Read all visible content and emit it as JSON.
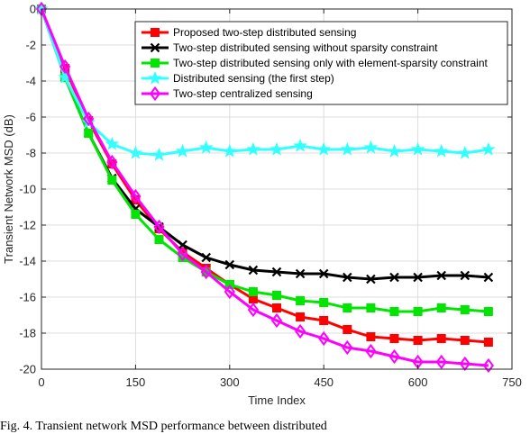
{
  "chart_data": {
    "type": "line",
    "title": "",
    "xlabel": "Time Index",
    "ylabel": "Transient Network MSD (dB)",
    "xlim": [
      0,
      750
    ],
    "ylim": [
      -20,
      0
    ],
    "xticks": [
      0,
      150,
      300,
      450,
      600,
      750
    ],
    "yticks": [
      0,
      -2,
      -4,
      -6,
      -8,
      -10,
      -12,
      -14,
      -16,
      -18,
      -20
    ],
    "grid": true,
    "legend_position": "top-right",
    "series": [
      {
        "name": "Proposed two-step distributed sensing",
        "color": "#ff0000",
        "marker": "square",
        "x": [
          0,
          37.5,
          75,
          112.5,
          150,
          187.5,
          225,
          262.5,
          300,
          337.5,
          375,
          412.5,
          450,
          487.5,
          525,
          562.5,
          600,
          637.5,
          675,
          712.5
        ],
        "y": [
          0,
          -3.3,
          -6.2,
          -8.6,
          -10.6,
          -12.2,
          -13.5,
          -14.4,
          -15.3,
          -16.1,
          -16.6,
          -17.1,
          -17.3,
          -17.8,
          -18.2,
          -18.3,
          -18.4,
          -18.3,
          -18.4,
          -18.5
        ]
      },
      {
        "name": "Two-step distributed sensing without sparsity constraint",
        "color": "#000000",
        "marker": "x",
        "x": [
          0,
          37.5,
          75,
          112.5,
          150,
          187.5,
          225,
          262.5,
          300,
          337.5,
          375,
          412.5,
          450,
          487.5,
          525,
          562.5,
          600,
          637.5,
          675,
          712.5
        ],
        "y": [
          0,
          -3.8,
          -6.9,
          -9.4,
          -11.1,
          -12.1,
          -13.1,
          -13.8,
          -14.2,
          -14.5,
          -14.6,
          -14.7,
          -14.7,
          -14.9,
          -15.0,
          -14.9,
          -14.9,
          -14.8,
          -14.8,
          -14.9
        ]
      },
      {
        "name": "Two-step distributed sensing only with element-sparsity constraint",
        "color": "#00e600",
        "marker": "square",
        "x": [
          0,
          37.5,
          75,
          112.5,
          150,
          187.5,
          225,
          262.5,
          300,
          337.5,
          375,
          412.5,
          450,
          487.5,
          525,
          562.5,
          600,
          637.5,
          675,
          712.5
        ],
        "y": [
          0,
          -3.8,
          -6.9,
          -9.5,
          -11.4,
          -12.8,
          -13.8,
          -14.6,
          -15.3,
          -15.7,
          -15.9,
          -16.2,
          -16.3,
          -16.6,
          -16.6,
          -16.8,
          -16.8,
          -16.6,
          -16.7,
          -16.8
        ]
      },
      {
        "name": "Distributed sensing (the first step)",
        "color": "#33ffff",
        "marker": "star",
        "x": [
          0,
          37.5,
          75,
          112.5,
          150,
          187.5,
          225,
          262.5,
          300,
          337.5,
          375,
          412.5,
          450,
          487.5,
          525,
          562.5,
          600,
          637.5,
          675,
          712.5
        ],
        "y": [
          0,
          -3.8,
          -6.3,
          -7.5,
          -8.0,
          -8.1,
          -7.9,
          -7.7,
          -7.9,
          -7.8,
          -7.8,
          -7.6,
          -7.8,
          -7.8,
          -7.7,
          -7.9,
          -7.8,
          -7.9,
          -8.0,
          -7.8
        ]
      },
      {
        "name": "Two-step centralized sensing",
        "color": "#ff00ff",
        "marker": "diamond",
        "x": [
          0,
          37.5,
          75,
          112.5,
          150,
          187.5,
          225,
          262.5,
          300,
          337.5,
          375,
          412.5,
          450,
          487.5,
          525,
          562.5,
          600,
          637.5,
          675,
          712.5
        ],
        "y": [
          0,
          -3.2,
          -6.1,
          -8.5,
          -10.4,
          -12.1,
          -13.6,
          -14.6,
          -15.7,
          -16.7,
          -17.3,
          -17.9,
          -18.3,
          -18.8,
          -19.0,
          -19.3,
          -19.6,
          -19.6,
          -19.7,
          -19.8
        ]
      }
    ]
  },
  "caption": "Fig. 4.   Transient network MSD performance between distributed"
}
